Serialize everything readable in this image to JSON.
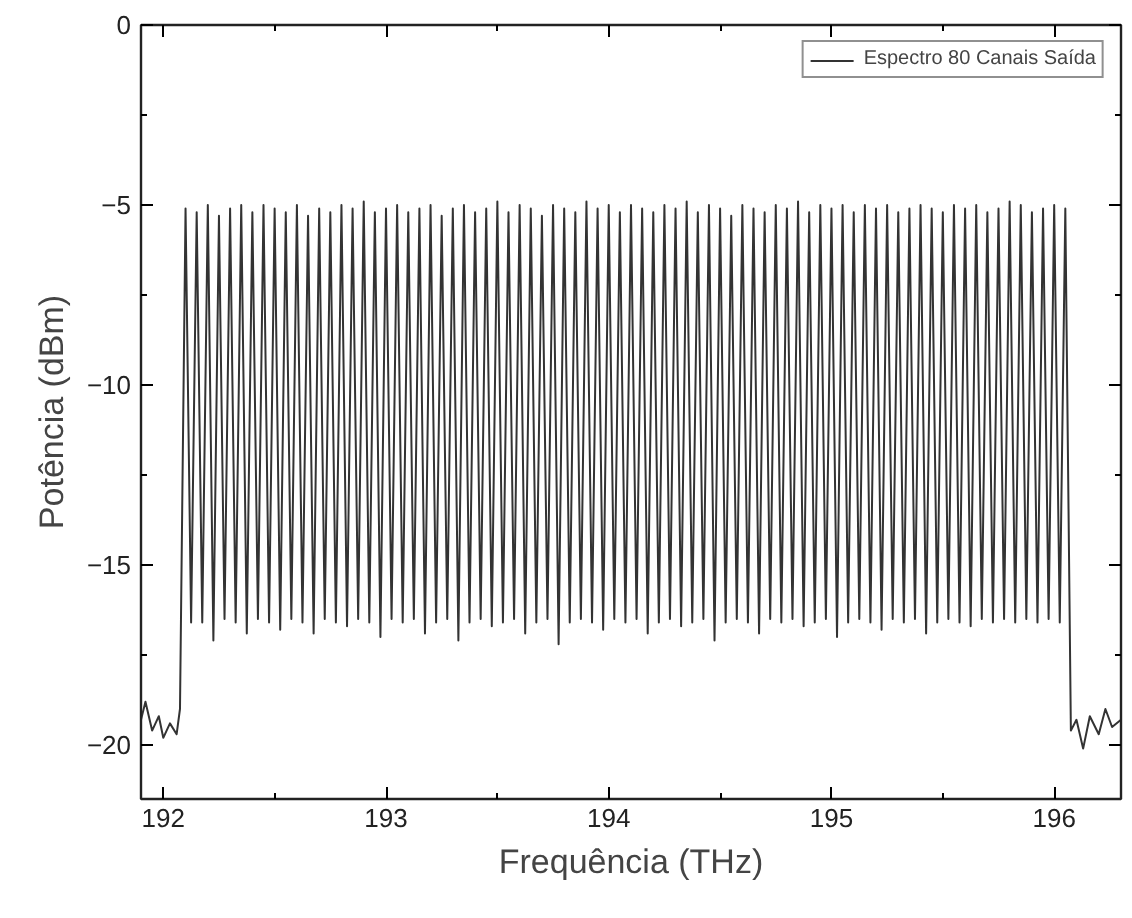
{
  "chart_data": {
    "type": "line",
    "xlabel": "Frequência (THz)",
    "ylabel": "Potência (dBm)",
    "xlim": [
      191.9,
      196.3
    ],
    "ylim": [
      -21.5,
      0
    ],
    "xticks": [
      192,
      193,
      194,
      195,
      196
    ],
    "yticks": [
      -20,
      -15,
      -10,
      -5,
      0
    ],
    "grid": false,
    "legend": "top right",
    "line_style": "solid",
    "marker": "none",
    "series": [
      {
        "name": "Espectro 80 Canais Saída",
        "color": "#333333",
        "x": [
          191.9,
          191.92,
          191.95,
          191.98,
          192.0,
          192.03,
          192.06,
          192.075,
          192.1,
          192.125,
          192.15,
          192.175,
          192.2,
          192.225,
          192.25,
          192.275,
          192.3,
          192.325,
          192.35,
          192.375,
          192.4,
          192.425,
          192.45,
          192.475,
          192.5,
          192.525,
          192.55,
          192.575,
          192.6,
          192.625,
          192.65,
          192.675,
          192.7,
          192.725,
          192.75,
          192.775,
          192.8,
          192.825,
          192.85,
          192.875,
          192.9,
          192.925,
          192.95,
          192.975,
          193.0,
          193.025,
          193.05,
          193.075,
          193.1,
          193.125,
          193.15,
          193.175,
          193.2,
          193.225,
          193.25,
          193.275,
          193.3,
          193.325,
          193.35,
          193.375,
          193.4,
          193.425,
          193.45,
          193.475,
          193.5,
          193.525,
          193.55,
          193.575,
          193.6,
          193.625,
          193.65,
          193.675,
          193.7,
          193.725,
          193.75,
          193.775,
          193.8,
          193.825,
          193.85,
          193.875,
          193.9,
          193.925,
          193.95,
          193.975,
          194.0,
          194.025,
          194.05,
          194.075,
          194.1,
          194.125,
          194.15,
          194.175,
          194.2,
          194.225,
          194.25,
          194.275,
          194.3,
          194.325,
          194.35,
          194.375,
          194.4,
          194.425,
          194.45,
          194.475,
          194.5,
          194.525,
          194.55,
          194.575,
          194.6,
          194.625,
          194.65,
          194.675,
          194.7,
          194.725,
          194.75,
          194.775,
          194.8,
          194.825,
          194.85,
          194.875,
          194.9,
          194.925,
          194.95,
          194.975,
          195.0,
          195.025,
          195.05,
          195.075,
          195.1,
          195.125,
          195.15,
          195.175,
          195.2,
          195.225,
          195.25,
          195.275,
          195.3,
          195.325,
          195.35,
          195.375,
          195.4,
          195.425,
          195.45,
          195.475,
          195.5,
          195.525,
          195.55,
          195.575,
          195.6,
          195.625,
          195.65,
          195.675,
          195.7,
          195.725,
          195.75,
          195.775,
          195.8,
          195.825,
          195.85,
          195.875,
          195.9,
          195.925,
          195.95,
          195.975,
          196.0,
          196.025,
          196.05,
          196.075,
          196.1,
          196.13,
          196.16,
          196.2,
          196.23,
          196.26,
          196.3
        ],
        "values": [
          -19.3,
          -18.8,
          -19.6,
          -19.2,
          -19.8,
          -19.4,
          -19.7,
          -19.0,
          -5.1,
          -16.6,
          -5.2,
          -16.6,
          -5.0,
          -17.1,
          -5.3,
          -16.5,
          -5.1,
          -16.6,
          -5.0,
          -16.9,
          -5.2,
          -16.5,
          -5.0,
          -16.6,
          -5.1,
          -16.8,
          -5.2,
          -16.5,
          -5.0,
          -16.6,
          -5.3,
          -16.9,
          -5.1,
          -16.5,
          -5.2,
          -16.6,
          -5.0,
          -16.7,
          -5.1,
          -16.5,
          -4.9,
          -16.6,
          -5.2,
          -17.0,
          -5.1,
          -16.5,
          -5.0,
          -16.6,
          -5.2,
          -16.5,
          -5.1,
          -16.9,
          -5.0,
          -16.6,
          -5.3,
          -16.5,
          -5.1,
          -17.1,
          -5.0,
          -16.6,
          -5.2,
          -16.5,
          -5.1,
          -16.7,
          -4.9,
          -16.6,
          -5.2,
          -16.5,
          -5.0,
          -16.9,
          -5.1,
          -16.6,
          -5.3,
          -16.5,
          -5.0,
          -17.2,
          -5.1,
          -16.6,
          -5.2,
          -16.5,
          -4.9,
          -16.6,
          -5.1,
          -16.8,
          -5.0,
          -16.5,
          -5.2,
          -16.6,
          -5.0,
          -16.5,
          -5.1,
          -16.9,
          -5.2,
          -16.6,
          -5.0,
          -16.5,
          -5.1,
          -16.7,
          -4.9,
          -16.6,
          -5.2,
          -16.5,
          -5.0,
          -17.1,
          -5.1,
          -16.6,
          -5.3,
          -16.5,
          -5.0,
          -16.6,
          -5.1,
          -16.9,
          -5.2,
          -16.5,
          -5.0,
          -16.6,
          -5.1,
          -16.5,
          -4.9,
          -16.7,
          -5.2,
          -16.6,
          -5.0,
          -16.5,
          -5.1,
          -17.0,
          -5.0,
          -16.6,
          -5.2,
          -16.5,
          -5.0,
          -16.6,
          -5.1,
          -16.8,
          -5.0,
          -16.5,
          -5.2,
          -16.6,
          -5.1,
          -16.5,
          -5.0,
          -16.9,
          -5.1,
          -16.6,
          -5.2,
          -16.5,
          -5.0,
          -16.6,
          -5.1,
          -16.7,
          -5.0,
          -16.5,
          -5.2,
          -16.6,
          -5.1,
          -16.5,
          -4.9,
          -16.6,
          -5.0,
          -16.5,
          -5.2,
          -16.6,
          -5.1,
          -16.5,
          -5.0,
          -16.6,
          -5.1,
          -19.6,
          -19.3,
          -20.1,
          -19.2,
          -19.7,
          -19.0,
          -19.5,
          -19.3
        ]
      }
    ]
  }
}
